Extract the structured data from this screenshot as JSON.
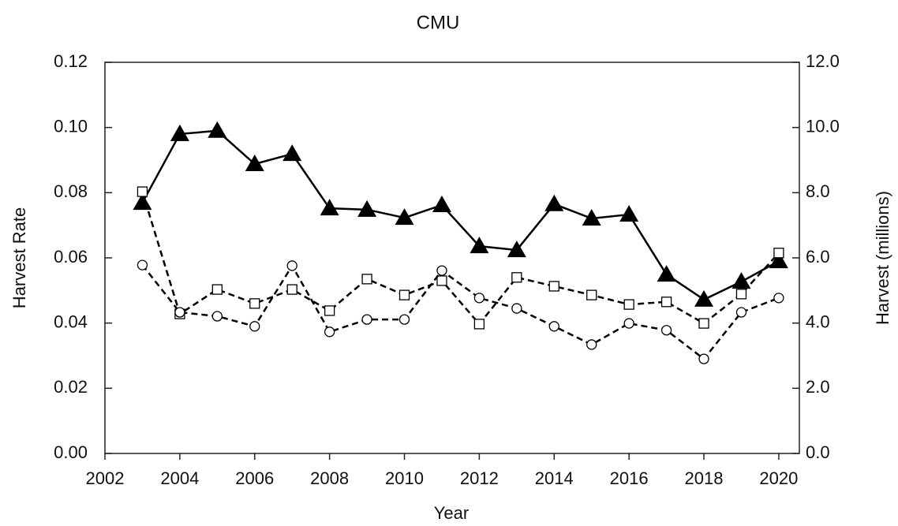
{
  "chart_data": {
    "type": "line",
    "title": "CMU",
    "x_label": "Year",
    "y_label": "Harvest Rate",
    "y2_label": "Harvest (millions)",
    "x": [
      2003,
      2004,
      2005,
      2006,
      2007,
      2008,
      2009,
      2010,
      2011,
      2012,
      2013,
      2014,
      2015,
      2016,
      2017,
      2018,
      2019,
      2020
    ],
    "xlim": [
      2002,
      2020.55
    ],
    "xticks": [
      2002,
      2004,
      2006,
      2008,
      2010,
      2012,
      2014,
      2016,
      2018,
      2020
    ],
    "ylim": [
      0,
      0.12
    ],
    "yticks": [
      {
        "value": 0,
        "label": "0.00"
      },
      {
        "value": 0.02,
        "label": "0.02"
      },
      {
        "value": 0.04,
        "label": "0.04"
      },
      {
        "value": 0.06,
        "label": "0.06"
      },
      {
        "value": 0.08,
        "label": "0.08"
      },
      {
        "value": 0.1,
        "label": "0.10"
      },
      {
        "value": 0.12,
        "label": "0.12"
      }
    ],
    "y2lim": [
      0,
      12
    ],
    "y2ticks": [
      {
        "value": 0,
        "label": "0.0"
      },
      {
        "value": 2,
        "label": "2.0"
      },
      {
        "value": 4,
        "label": "4.0"
      },
      {
        "value": 6,
        "label": "6.0"
      },
      {
        "value": 8,
        "label": "8.0"
      },
      {
        "value": 10,
        "label": "10.0"
      },
      {
        "value": 12,
        "label": "12.0"
      }
    ],
    "series": [
      {
        "color": "#000000",
        "marker": "triangle",
        "dashed": false,
        "axis": "y2",
        "values": [
          7.69,
          9.8,
          9.9,
          8.88,
          9.19,
          7.52,
          7.48,
          7.23,
          7.62,
          6.36,
          6.24,
          7.65,
          7.21,
          7.33,
          5.49,
          4.72,
          5.27,
          5.9
        ]
      },
      {
        "color": "#000000",
        "marker": "square",
        "dashed": true,
        "values": [
          0.0803,
          0.0428,
          0.0503,
          0.046,
          0.0503,
          0.0438,
          0.0535,
          0.0486,
          0.053,
          0.0397,
          0.054,
          0.0513,
          0.0486,
          0.0457,
          0.0465,
          0.0399,
          0.0489,
          0.0615
        ]
      },
      {
        "color": "#000000",
        "marker": "circle",
        "dashed": true,
        "values": [
          0.0578,
          0.0433,
          0.0421,
          0.039,
          0.0576,
          0.0373,
          0.0411,
          0.0411,
          0.0561,
          0.0477,
          0.0445,
          0.039,
          0.0334,
          0.0399,
          0.0378,
          0.029,
          0.0433,
          0.0477
        ]
      }
    ]
  }
}
